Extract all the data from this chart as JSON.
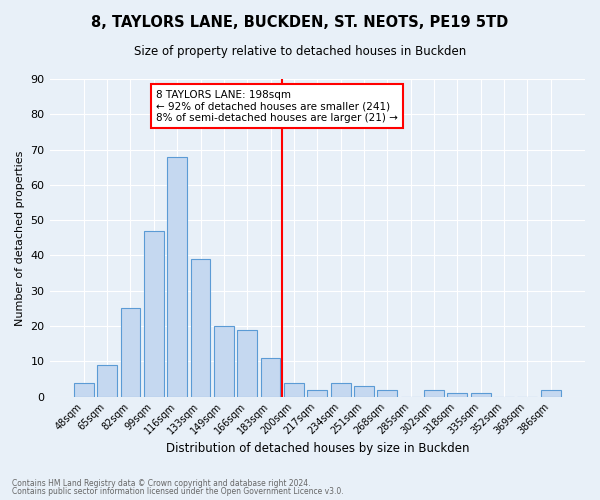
{
  "title": "8, TAYLORS LANE, BUCKDEN, ST. NEOTS, PE19 5TD",
  "subtitle": "Size of property relative to detached houses in Buckden",
  "xlabel": "Distribution of detached houses by size in Buckden",
  "ylabel": "Number of detached properties",
  "footer1": "Contains HM Land Registry data © Crown copyright and database right 2024.",
  "footer2": "Contains public sector information licensed under the Open Government Licence v3.0.",
  "categories": [
    "48sqm",
    "65sqm",
    "82sqm",
    "99sqm",
    "116sqm",
    "133sqm",
    "149sqm",
    "166sqm",
    "183sqm",
    "200sqm",
    "217sqm",
    "234sqm",
    "251sqm",
    "268sqm",
    "285sqm",
    "302sqm",
    "318sqm",
    "335sqm",
    "352sqm",
    "369sqm",
    "386sqm"
  ],
  "values": [
    4,
    9,
    25,
    47,
    68,
    39,
    20,
    19,
    11,
    4,
    2,
    4,
    3,
    2,
    0,
    2,
    1,
    1,
    0,
    0,
    2
  ],
  "bar_color": "#c5d8f0",
  "bar_edge_color": "#5b9bd5",
  "vline_x": 8.5,
  "vline_color": "red",
  "annotation_title": "8 TAYLORS LANE: 198sqm",
  "annotation_line1": "← 92% of detached houses are smaller (241)",
  "annotation_line2": "8% of semi-detached houses are larger (21) →",
  "annotation_box_color": "white",
  "annotation_box_edge": "red",
  "background_color": "#e8f0f8",
  "grid_color": "white",
  "ylim": [
    0,
    90
  ],
  "yticks": [
    0,
    10,
    20,
    30,
    40,
    50,
    60,
    70,
    80,
    90
  ]
}
